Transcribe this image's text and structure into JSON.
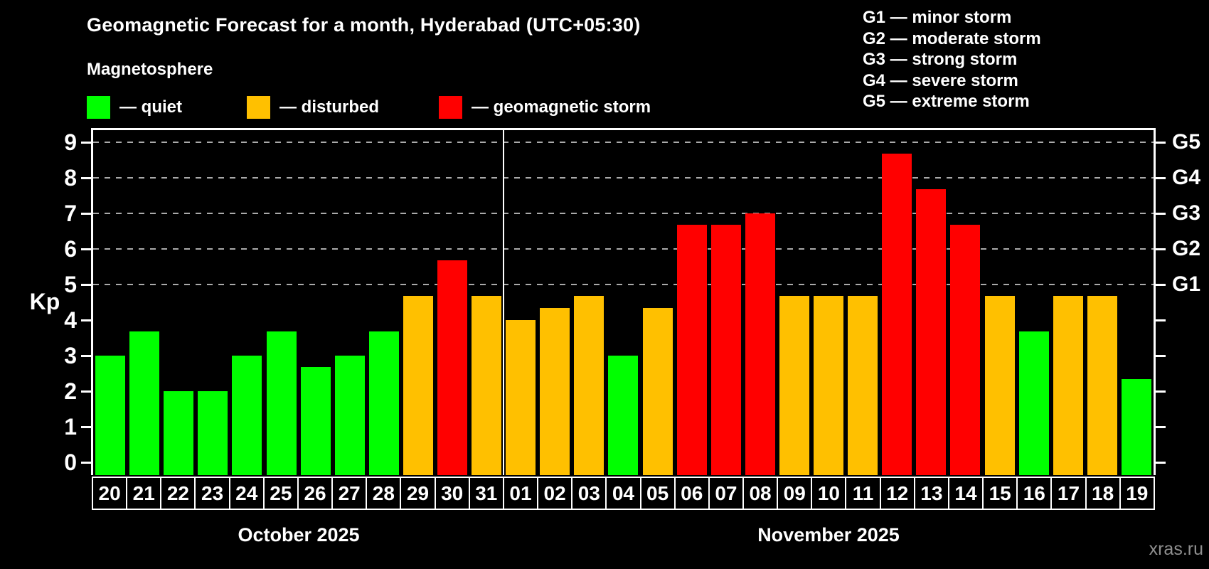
{
  "title": "Geomagnetic Forecast for a month, Hyderabad (UTC+05:30)",
  "subtitle": "Magnetosphere",
  "status_legend": [
    {
      "key": "quiet",
      "label": "— quiet",
      "color": "#00ff00"
    },
    {
      "key": "disturbed",
      "label": "— disturbed",
      "color": "#ffc000"
    },
    {
      "key": "storm",
      "label": "— geomagnetic storm",
      "color": "#ff0000"
    }
  ],
  "g_scale_legend": [
    "G1 — minor storm",
    "G2 — moderate storm",
    "G3 — strong storm",
    "G4 — severe storm",
    "G5 — extreme storm"
  ],
  "watermark": "xras.ru",
  "chart_data": {
    "type": "bar",
    "title": "Geomagnetic Forecast for a month, Hyderabad (UTC+05:30)",
    "subtitle": "Magnetosphere",
    "ylabel": "Kp",
    "ylim": [
      0,
      9
    ],
    "yticks": [
      0,
      1,
      2,
      3,
      4,
      5,
      6,
      7,
      8,
      9
    ],
    "gridlines_at_kp": [
      5,
      6,
      7,
      8,
      9
    ],
    "grid": "horizontal dashed lines at Kp 5–9 only",
    "legend_position": "top-left",
    "right_axis_labels": [
      {
        "label": "G1",
        "kp": 5
      },
      {
        "label": "G2",
        "kp": 6
      },
      {
        "label": "G3",
        "kp": 7
      },
      {
        "label": "G4",
        "kp": 8
      },
      {
        "label": "G5",
        "kp": 9
      }
    ],
    "status_colors": {
      "quiet": "#00ff00",
      "disturbed": "#ffc000",
      "storm": "#ff0000"
    },
    "months": [
      {
        "name": "October 2025",
        "bars": [
          {
            "day": "20",
            "kp": 3.0,
            "status": "quiet"
          },
          {
            "day": "21",
            "kp": 3.67,
            "status": "quiet"
          },
          {
            "day": "22",
            "kp": 2.0,
            "status": "quiet"
          },
          {
            "day": "23",
            "kp": 2.0,
            "status": "quiet"
          },
          {
            "day": "24",
            "kp": 3.0,
            "status": "quiet"
          },
          {
            "day": "25",
            "kp": 3.67,
            "status": "quiet"
          },
          {
            "day": "26",
            "kp": 2.67,
            "status": "quiet"
          },
          {
            "day": "27",
            "kp": 3.0,
            "status": "quiet"
          },
          {
            "day": "28",
            "kp": 3.67,
            "status": "quiet"
          },
          {
            "day": "29",
            "kp": 4.67,
            "status": "disturbed"
          },
          {
            "day": "30",
            "kp": 5.67,
            "status": "storm"
          },
          {
            "day": "31",
            "kp": 4.67,
            "status": "disturbed"
          }
        ]
      },
      {
        "name": "November 2025",
        "bars": [
          {
            "day": "01",
            "kp": 4.0,
            "status": "disturbed"
          },
          {
            "day": "02",
            "kp": 4.33,
            "status": "disturbed"
          },
          {
            "day": "03",
            "kp": 4.67,
            "status": "disturbed"
          },
          {
            "day": "04",
            "kp": 3.0,
            "status": "quiet"
          },
          {
            "day": "05",
            "kp": 4.33,
            "status": "disturbed"
          },
          {
            "day": "06",
            "kp": 6.67,
            "status": "storm"
          },
          {
            "day": "07",
            "kp": 6.67,
            "status": "storm"
          },
          {
            "day": "08",
            "kp": 7.0,
            "status": "storm"
          },
          {
            "day": "09",
            "kp": 4.67,
            "status": "disturbed"
          },
          {
            "day": "10",
            "kp": 4.67,
            "status": "disturbed"
          },
          {
            "day": "11",
            "kp": 4.67,
            "status": "disturbed"
          },
          {
            "day": "12",
            "kp": 8.67,
            "status": "storm"
          },
          {
            "day": "13",
            "kp": 7.67,
            "status": "storm"
          },
          {
            "day": "14",
            "kp": 6.67,
            "status": "storm"
          },
          {
            "day": "15",
            "kp": 4.67,
            "status": "disturbed"
          },
          {
            "day": "16",
            "kp": 3.67,
            "status": "quiet"
          },
          {
            "day": "17",
            "kp": 4.67,
            "status": "disturbed"
          },
          {
            "day": "18",
            "kp": 4.67,
            "status": "disturbed"
          },
          {
            "day": "19",
            "kp": 2.33,
            "status": "quiet"
          }
        ]
      }
    ]
  }
}
